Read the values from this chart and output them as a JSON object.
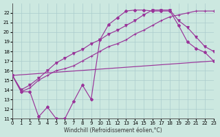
{
  "bg_color": "#cce8e0",
  "grid_color": "#aacccc",
  "line_color": "#993399",
  "xlabel": "Windchill (Refroidissement éolien,°C)",
  "xlim": [
    0,
    23
  ],
  "ylim": [
    11,
    23
  ],
  "xticks": [
    0,
    1,
    2,
    3,
    4,
    5,
    6,
    7,
    8,
    9,
    10,
    11,
    12,
    13,
    14,
    15,
    16,
    17,
    18,
    19,
    20,
    21,
    22,
    23
  ],
  "yticks": [
    11,
    12,
    13,
    14,
    15,
    16,
    17,
    18,
    19,
    20,
    21,
    22
  ],
  "curve1_x": [
    0,
    1,
    2,
    3,
    4,
    5,
    6,
    7,
    8,
    9,
    10,
    11,
    12,
    13,
    14,
    15,
    16,
    17,
    18,
    19,
    20,
    21,
    22,
    23
  ],
  "curve1_y": [
    15.5,
    13.8,
    13.8,
    11.2,
    12.2,
    11.0,
    11.0,
    12.8,
    14.5,
    13.0,
    19.2,
    20.8,
    21.5,
    22.2,
    22.3,
    22.3,
    22.2,
    22.2,
    22.2,
    20.7,
    19.0,
    18.3,
    17.9,
    17.0
  ],
  "curve2_x": [
    0,
    1,
    2,
    3,
    4,
    5,
    6,
    7,
    8,
    9,
    10,
    11,
    12,
    13,
    14,
    15,
    16,
    17,
    18,
    19,
    20,
    21,
    22,
    23
  ],
  "curve2_y": [
    15.5,
    13.8,
    14.2,
    15.0,
    15.5,
    16.0,
    16.2,
    16.5,
    17.0,
    17.5,
    18.0,
    18.5,
    18.8,
    19.2,
    19.8,
    20.2,
    20.7,
    21.2,
    21.6,
    21.8,
    22.0,
    22.2,
    22.2,
    22.2
  ],
  "curve3_x": [
    0,
    1,
    2,
    3,
    4,
    5,
    6,
    7,
    8,
    9,
    10,
    11,
    12,
    13,
    14,
    15,
    16,
    17,
    18,
    19,
    20,
    21,
    22,
    23
  ],
  "curve3_y": [
    15.5,
    14.0,
    14.5,
    15.2,
    16.0,
    16.8,
    17.3,
    17.8,
    18.2,
    18.8,
    19.2,
    19.8,
    20.2,
    20.7,
    21.2,
    21.8,
    22.3,
    22.3,
    22.3,
    21.2,
    20.5,
    19.5,
    18.5,
    18.0
  ],
  "line_x": [
    0,
    23
  ],
  "line_y": [
    15.5,
    17.0
  ]
}
